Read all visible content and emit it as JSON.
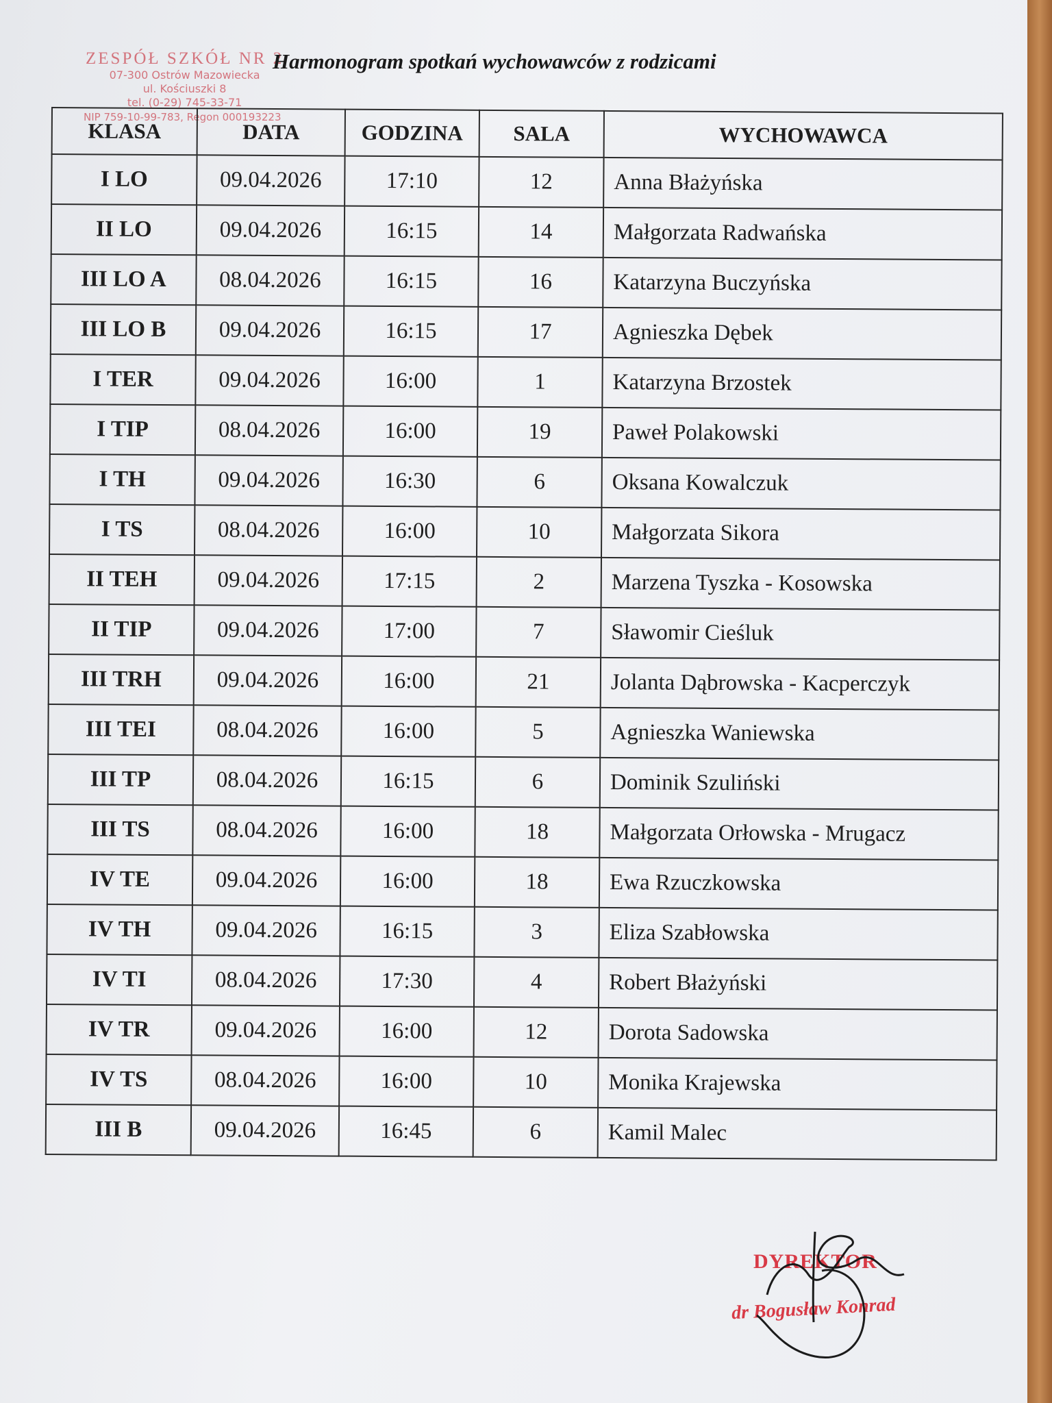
{
  "title": "Harmonogram spotkań wychowawców z rodzicami",
  "stamp": {
    "line1": "ZESPÓŁ SZKÓŁ NR 2",
    "line2": "07-300 Ostrów Mazowiecka",
    "line3": "ul. Kościuszki 8",
    "line4": "tel. (0-29) 745-33-71",
    "line5": "NIP 759-10-99-783, Regon 000193223"
  },
  "table": {
    "headers": [
      "KLASA",
      "DATA",
      "GODZINA",
      "SALA",
      "WYCHOWAWCA"
    ],
    "rows": [
      [
        "I LO",
        "09.04.2026",
        "17:10",
        "12",
        "Anna Błażyńska"
      ],
      [
        "II LO",
        "09.04.2026",
        "16:15",
        "14",
        "Małgorzata Radwańska"
      ],
      [
        "III LO A",
        "08.04.2026",
        "16:15",
        "16",
        "Katarzyna Buczyńska"
      ],
      [
        "III LO B",
        "09.04.2026",
        "16:15",
        "17",
        "Agnieszka Dębek"
      ],
      [
        "I TER",
        "09.04.2026",
        "16:00",
        "1",
        "Katarzyna Brzostek"
      ],
      [
        "I TIP",
        "08.04.2026",
        "16:00",
        "19",
        "Paweł Polakowski"
      ],
      [
        "I TH",
        "09.04.2026",
        "16:30",
        "6",
        "Oksana Kowalczuk"
      ],
      [
        "I TS",
        "08.04.2026",
        "16:00",
        "10",
        "Małgorzata Sikora"
      ],
      [
        "II TEH",
        "09.04.2026",
        "17:15",
        "2",
        "Marzena Tyszka - Kosowska"
      ],
      [
        "II TIP",
        "09.04.2026",
        "17:00",
        "7",
        "Sławomir Cieśluk"
      ],
      [
        "III TRH",
        "09.04.2026",
        "16:00",
        "21",
        "Jolanta Dąbrowska - Kacperczyk"
      ],
      [
        "III TEI",
        "08.04.2026",
        "16:00",
        "5",
        "Agnieszka Waniewska"
      ],
      [
        "III TP",
        "08.04.2026",
        "16:15",
        "6",
        "Dominik Szuliński"
      ],
      [
        "III TS",
        "08.04.2026",
        "16:00",
        "18",
        "Małgorzata Orłowska - Mrugacz"
      ],
      [
        "IV TE",
        "09.04.2026",
        "16:00",
        "18",
        "Ewa Rzuczkowska"
      ],
      [
        "IV TH",
        "09.04.2026",
        "16:15",
        "3",
        "Eliza Szabłowska"
      ],
      [
        "IV TI",
        "08.04.2026",
        "17:30",
        "4",
        "Robert Błażyński"
      ],
      [
        "IV TR",
        "09.04.2026",
        "16:00",
        "12",
        "Dorota Sadowska"
      ],
      [
        "IV TS",
        "08.04.2026",
        "16:00",
        "10",
        "Monika Krajewska"
      ],
      [
        "III B",
        "09.04.2026",
        "16:45",
        "6",
        "Kamil Malec"
      ]
    ]
  },
  "signature": {
    "role": "DYREKTOR",
    "name": "dr Bogusław Konrad"
  },
  "colors": {
    "stamp_red": "#d83a46",
    "ink": "#1f1f1f"
  }
}
